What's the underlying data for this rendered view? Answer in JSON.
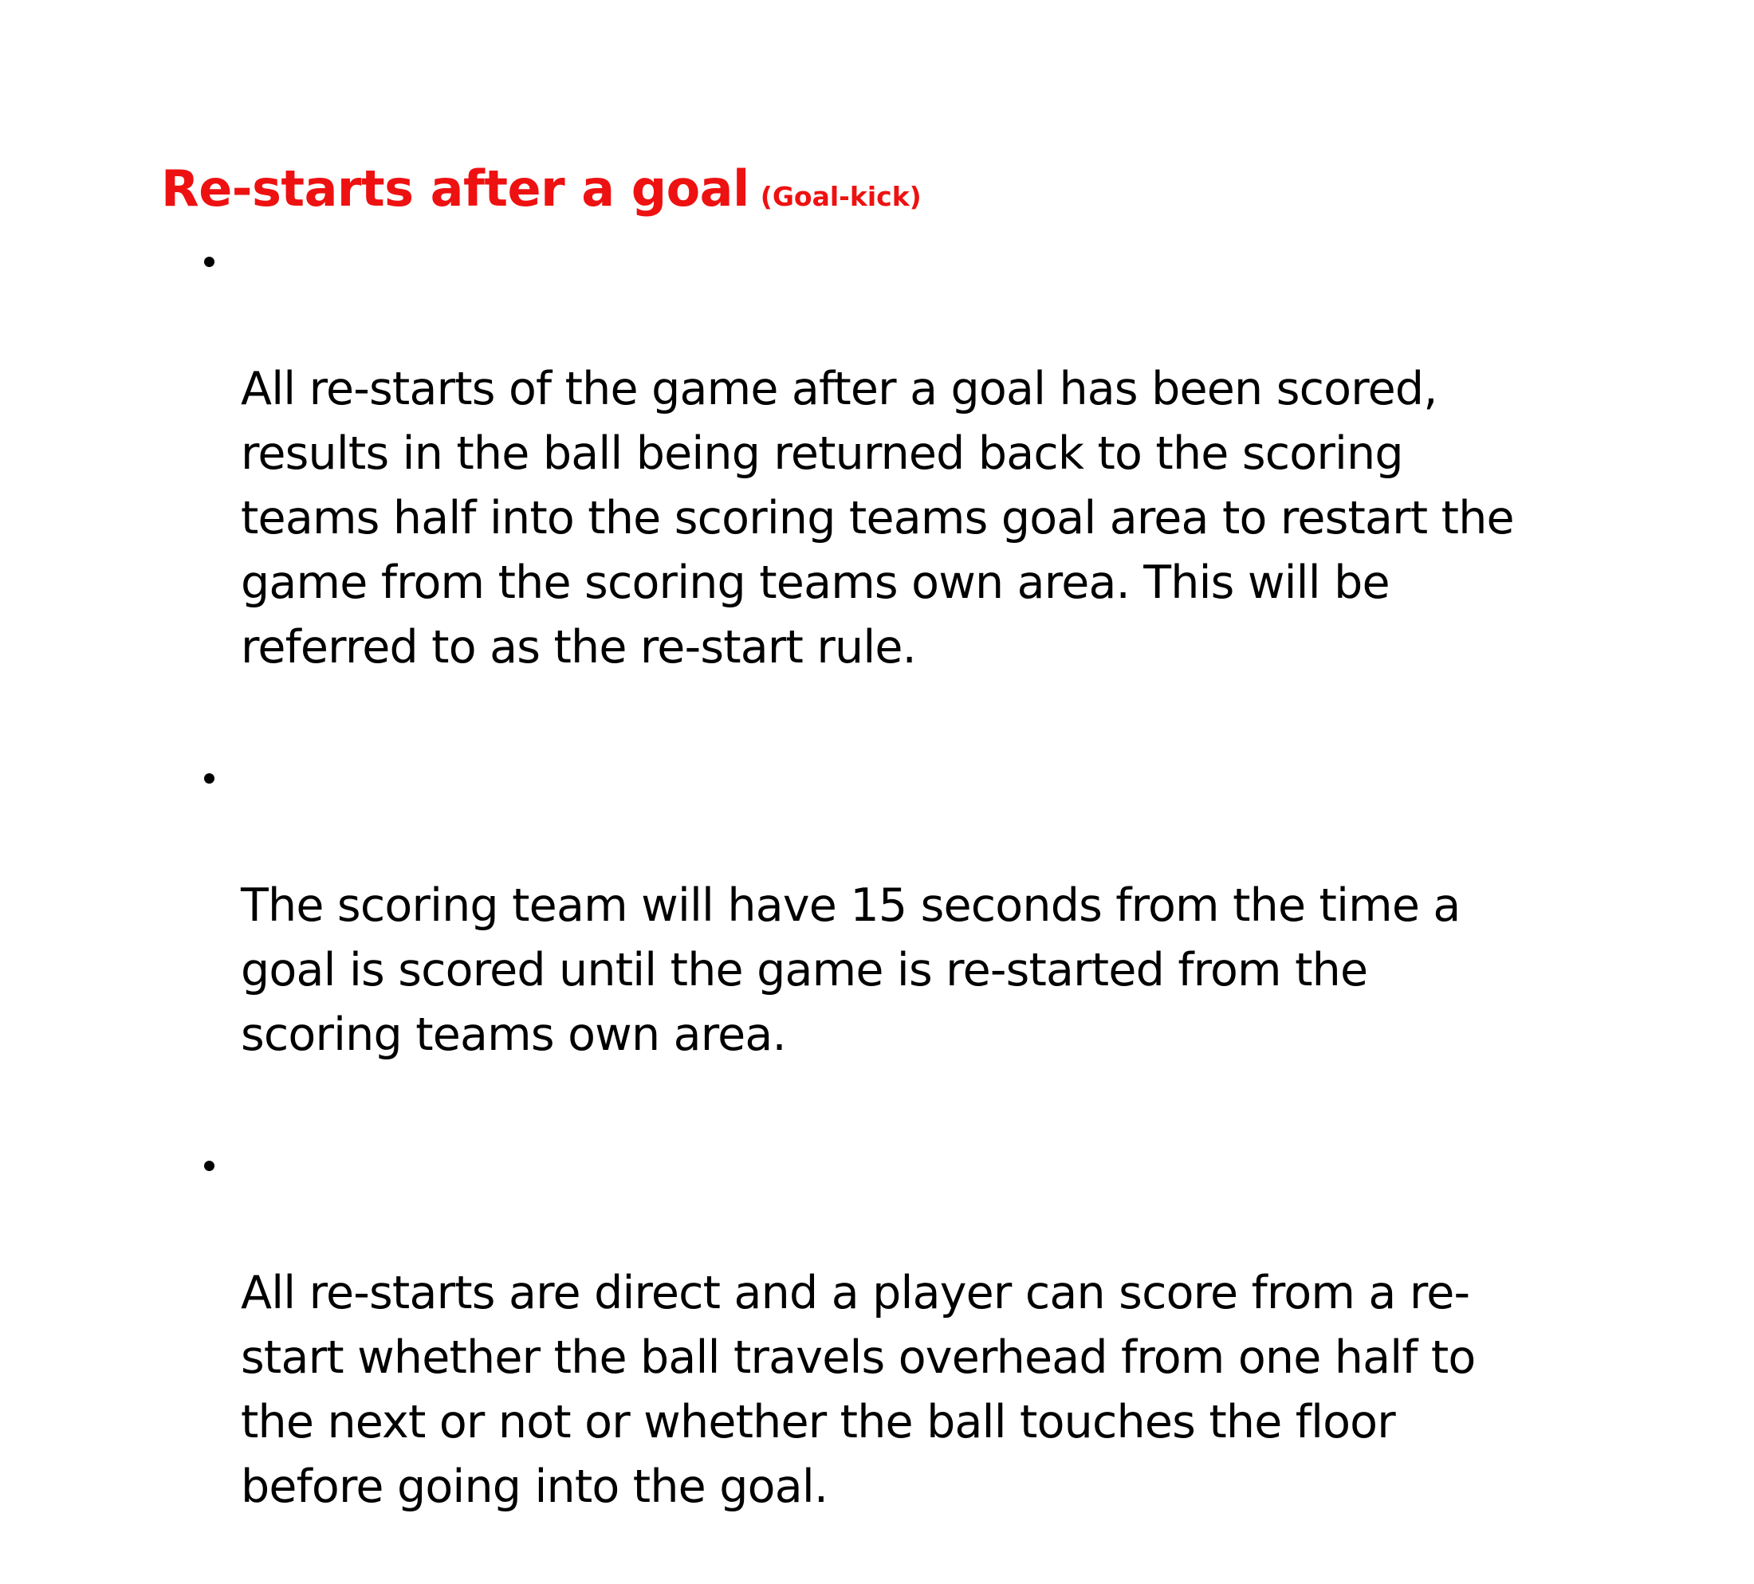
{
  "heading": {
    "main": "Re-starts after a goal",
    "sub": "(Goal-kick)",
    "color": "#ee1111"
  },
  "bullets": [
    {
      "text": "All re-starts of the game after a goal has been scored,\nresults in the ball being returned back to the scoring\nteams half into the scoring teams goal area to restart the\ngame from the scoring teams own area. This will be\nreferred to as the re-start rule."
    },
    {
      "text": "The scoring team will have 15 seconds from the time a\ngoal is scored until the game is re-started from the\nscoring teams own area."
    },
    {
      "text": "All re-starts are direct and a player can score from a re-\nstart whether the ball travels overhead from one half to\nthe next or not or whether the ball touches the floor\nbefore going into the goal."
    }
  ]
}
